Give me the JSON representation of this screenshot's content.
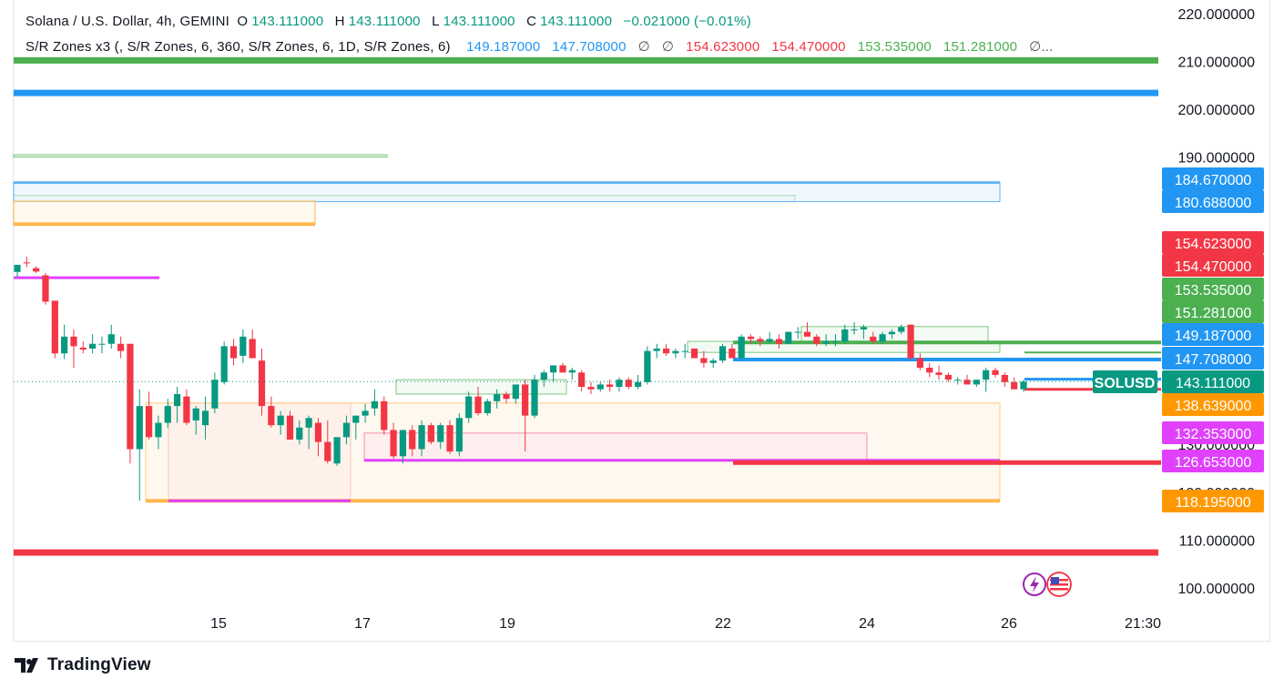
{
  "header": {
    "symbol_title": "Solana / U.S. Dollar, 4h, GEMINI",
    "open_label": "O",
    "open": "143.111000",
    "high_label": "H",
    "high": "143.111000",
    "low_label": "L",
    "low": "143.111000",
    "close_label": "C",
    "close": "143.111000",
    "change": "−0.021000 (−0.01%)"
  },
  "indicator": {
    "name": "S/R Zones x3 (, S/R Zones, 6, 360, S/R Zones, 6, 1D, S/R Zones, 6)",
    "values": [
      {
        "text": "149.187000",
        "color": "#2196f3"
      },
      {
        "text": "147.708000",
        "color": "#2196f3"
      },
      {
        "text": "∅",
        "color": "#555555"
      },
      {
        "text": "∅",
        "color": "#555555"
      },
      {
        "text": "154.623000",
        "color": "#f23645"
      },
      {
        "text": "154.470000",
        "color": "#f23645"
      },
      {
        "text": "153.535000",
        "color": "#4caf50"
      },
      {
        "text": "151.281000",
        "color": "#4caf50"
      },
      {
        "text": "∅...",
        "color": "#555555"
      }
    ]
  },
  "branding": {
    "name": "TradingView"
  },
  "symbol_tag": "SOLUSD",
  "chart_data": {
    "type": "candlestick",
    "yaxis": {
      "ylim": [
        91.5,
        222
      ],
      "ticks": [
        100,
        110,
        120,
        130,
        190,
        200,
        210,
        220
      ],
      "tick_format": "6 decimals"
    },
    "xaxis": {
      "ticks": [
        "15",
        "17",
        "19",
        "22",
        "24",
        "26",
        "21:30"
      ]
    },
    "price_labels": [
      {
        "value": "184.670000",
        "color": "#2196f3"
      },
      {
        "value": "180.688000",
        "color": "#2196f3"
      },
      {
        "value": "154.623000",
        "color": "#f23645"
      },
      {
        "value": "154.470000",
        "color": "#f23645"
      },
      {
        "value": "153.535000",
        "color": "#4caf50"
      },
      {
        "value": "151.281000",
        "color": "#4caf50"
      },
      {
        "value": "149.187000",
        "color": "#2196f3"
      },
      {
        "value": "147.708000",
        "color": "#2196f3"
      },
      {
        "value": "143.111000",
        "color": "#089981"
      },
      {
        "value": "138.639000",
        "color": "#ff9800"
      },
      {
        "value": "132.353000",
        "color": "#e040fb"
      },
      {
        "value": "126.653000",
        "color": "#e040fb"
      },
      {
        "value": "118.195000",
        "color": "#ff9800"
      }
    ],
    "levels": [
      {
        "value": 210.2,
        "color": "#4caf50",
        "thick": true
      },
      {
        "value": 203.4,
        "color": "#2196f3",
        "thick": true
      },
      {
        "value": 107.4,
        "color": "#f23645",
        "thick": true
      }
    ],
    "last_price": 143.111,
    "colors": {
      "up": "#089981",
      "down": "#f23645"
    },
    "candles": [
      [
        166.0,
        167.5,
        165.0,
        167.5
      ],
      [
        168.0,
        169.2,
        167.0,
        167.8
      ],
      [
        166.8,
        167.2,
        165.8,
        166.1
      ],
      [
        165.3,
        165.8,
        159.2,
        159.8
      ],
      [
        160.0,
        160.0,
        148.0,
        149.0
      ],
      [
        149.0,
        155.0,
        147.8,
        152.5
      ],
      [
        152.5,
        154.0,
        146.0,
        150.5
      ],
      [
        150.2,
        151.5,
        149.0,
        149.8
      ],
      [
        150.0,
        153.0,
        149.0,
        151.0
      ],
      [
        151.0,
        152.5,
        149.0,
        151.0
      ],
      [
        151.0,
        155.0,
        150.0,
        153.0
      ],
      [
        151.0,
        152.5,
        148.0,
        149.5
      ],
      [
        151.0,
        151.0,
        126.0,
        129.0
      ],
      [
        129.0,
        141.5,
        118.2,
        138.0
      ],
      [
        138.0,
        141.0,
        131.0,
        131.5
      ],
      [
        131.5,
        136.0,
        129.0,
        134.5
      ],
      [
        134.5,
        139.5,
        133.5,
        138.0
      ],
      [
        138.0,
        142.0,
        134.5,
        140.5
      ],
      [
        140.0,
        141.5,
        134.0,
        134.5
      ],
      [
        135.0,
        138.0,
        132.0,
        137.5
      ],
      [
        134.0,
        140.0,
        131.0,
        137.0
      ],
      [
        137.5,
        145.0,
        136.5,
        143.5
      ],
      [
        143.0,
        151.5,
        142.5,
        150.5
      ],
      [
        150.5,
        152.0,
        146.5,
        148.0
      ],
      [
        148.5,
        154.0,
        147.0,
        152.5
      ],
      [
        152.0,
        154.0,
        148.0,
        148.0
      ],
      [
        147.5,
        150.0,
        136.0,
        138.0
      ],
      [
        138.0,
        140.0,
        133.5,
        134.0
      ],
      [
        134.0,
        137.0,
        132.0,
        136.0
      ],
      [
        136.0,
        137.0,
        131.0,
        131.0
      ],
      [
        131.0,
        135.0,
        130.0,
        133.5
      ],
      [
        133.5,
        136.0,
        129.0,
        135.5
      ],
      [
        134.5,
        135.5,
        127.5,
        130.5
      ],
      [
        130.5,
        135.0,
        126.0,
        126.5
      ],
      [
        126.0,
        131.0,
        125.5,
        131.5
      ],
      [
        131.5,
        136.0,
        130.0,
        134.5
      ],
      [
        134.5,
        136.0,
        131.0,
        136.0
      ],
      [
        136.0,
        138.5,
        134.5,
        137.0
      ],
      [
        137.5,
        141.5,
        136.0,
        139.0
      ],
      [
        139.0,
        140.0,
        132.0,
        133.0
      ],
      [
        133.0,
        134.5,
        127.0,
        127.5
      ],
      [
        127.5,
        133.0,
        126.0,
        133.0
      ],
      [
        133.0,
        134.0,
        127.5,
        129.0
      ],
      [
        129.0,
        135.0,
        127.5,
        134.0
      ],
      [
        134.0,
        134.5,
        130.0,
        130.5
      ],
      [
        130.5,
        134.5,
        129.0,
        134.0
      ],
      [
        134.0,
        135.0,
        128.0,
        128.5
      ],
      [
        128.5,
        136.5,
        127.5,
        135.5
      ],
      [
        135.5,
        141.0,
        134.5,
        140.0
      ],
      [
        140.0,
        142.0,
        136.0,
        136.5
      ],
      [
        136.5,
        139.5,
        136.0,
        139.0
      ],
      [
        139.0,
        141.5,
        137.5,
        140.5
      ],
      [
        140.5,
        141.0,
        138.5,
        139.5
      ],
      [
        139.5,
        142.5,
        138.5,
        142.5
      ],
      [
        142.5,
        143.5,
        128.5,
        136.0
      ],
      [
        136.0,
        144.5,
        135.5,
        143.5
      ],
      [
        143.5,
        145.5,
        142.0,
        145.0
      ],
      [
        145.0,
        146.5,
        143.0,
        146.5
      ],
      [
        146.5,
        147.0,
        145.0,
        145.0
      ],
      [
        145.0,
        146.0,
        143.5,
        145.5
      ],
      [
        145.0,
        145.5,
        141.0,
        142.0
      ],
      [
        142.0,
        143.0,
        140.5,
        141.5
      ],
      [
        141.5,
        143.0,
        141.0,
        142.5
      ],
      [
        142.5,
        143.5,
        141.0,
        142.0
      ],
      [
        142.0,
        144.0,
        141.0,
        143.5
      ],
      [
        143.5,
        144.0,
        141.5,
        142.0
      ],
      [
        142.0,
        144.5,
        141.5,
        143.0
      ],
      [
        143.0,
        150.5,
        142.5,
        149.5
      ],
      [
        149.5,
        151.0,
        148.0,
        150.0
      ],
      [
        150.0,
        151.0,
        148.5,
        149.0
      ],
      [
        149.0,
        150.0,
        148.0,
        149.5
      ],
      [
        149.5,
        151.0,
        148.0,
        149.5
      ],
      [
        150.0,
        150.0,
        148.0,
        148.0
      ],
      [
        148.0,
        149.5,
        146.0,
        147.0
      ],
      [
        147.0,
        148.0,
        146.0,
        147.5
      ],
      [
        147.5,
        151.0,
        147.0,
        150.5
      ],
      [
        150.0,
        151.0,
        148.0,
        148.0
      ],
      [
        148.0,
        153.0,
        147.5,
        152.5
      ],
      [
        152.5,
        153.0,
        151.0,
        152.0
      ],
      [
        152.0,
        152.5,
        150.5,
        151.5
      ],
      [
        151.5,
        153.5,
        151.0,
        152.0
      ],
      [
        152.0,
        153.0,
        150.0,
        151.0
      ],
      [
        151.0,
        153.5,
        151.0,
        153.5
      ],
      [
        153.5,
        154.5,
        152.0,
        153.5
      ],
      [
        153.5,
        155.5,
        152.5,
        152.5
      ],
      [
        152.5,
        153.0,
        150.5,
        151.0
      ],
      [
        151.0,
        153.0,
        150.5,
        151.5
      ],
      [
        151.5,
        153.0,
        150.5,
        151.5
      ],
      [
        151.5,
        155.0,
        151.0,
        154.0
      ],
      [
        154.0,
        155.5,
        153.0,
        154.0
      ],
      [
        154.0,
        155.0,
        152.0,
        154.5
      ],
      [
        152.5,
        153.5,
        151.0,
        151.5
      ],
      [
        151.5,
        153.5,
        151.0,
        153.0
      ],
      [
        153.0,
        154.0,
        152.0,
        153.5
      ],
      [
        153.5,
        155.0,
        153.0,
        154.5
      ],
      [
        155.0,
        155.0,
        147.5,
        148.0
      ],
      [
        148.0,
        149.0,
        145.5,
        146.0
      ],
      [
        146.0,
        147.0,
        144.0,
        145.0
      ],
      [
        145.0,
        146.5,
        143.5,
        144.5
      ],
      [
        144.5,
        145.0,
        143.0,
        143.5
      ],
      [
        143.5,
        144.0,
        142.5,
        143.5
      ],
      [
        143.5,
        144.5,
        142.5,
        142.5
      ],
      [
        142.5,
        143.5,
        142.0,
        143.5
      ],
      [
        143.5,
        146.0,
        141.0,
        145.5
      ],
      [
        145.5,
        146.0,
        144.0,
        144.5
      ],
      [
        144.5,
        145.0,
        142.0,
        143.0
      ],
      [
        143.0,
        144.0,
        141.5,
        141.5
      ],
      [
        141.5,
        143.5,
        141.0,
        143.1
      ]
    ]
  }
}
